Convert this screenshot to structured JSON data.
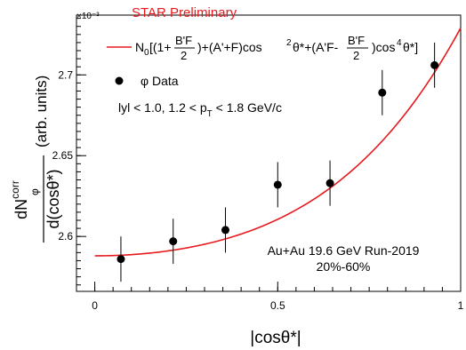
{
  "chart_data": {
    "type": "scatter",
    "preliminary_label": "STAR Preliminary",
    "exponent_label": "×10⁻³",
    "xlabel": "|cosθ*|",
    "ylabel": {
      "units": "(arb. units)",
      "numerator": "dN",
      "numerator_sup": "corr",
      "numerator_sub": "φ",
      "denominator": "d(cosθ*)"
    },
    "xlim": [
      -0.05,
      1.0
    ],
    "ylim": [
      2.566,
      2.737
    ],
    "x_ticks": [
      0,
      0.5,
      1
    ],
    "x_tick_labels": [
      "0",
      "0.5",
      "1"
    ],
    "y_ticks": [
      2.6,
      2.65,
      2.7
    ],
    "y_tick_labels": [
      "2.6",
      "2.65",
      "2.7"
    ],
    "colors": {
      "data": "#000000",
      "fit": "#e8191e",
      "label": "#e8191e"
    },
    "series": [
      {
        "name": "φ Data",
        "marker": "filled-circle",
        "x": [
          0.0714,
          0.2143,
          0.3571,
          0.5,
          0.6429,
          0.7857,
          0.9286
        ],
        "y": [
          2.586,
          2.597,
          2.604,
          2.632,
          2.633,
          2.689,
          2.706
        ],
        "yerr": [
          0.014,
          0.014,
          0.014,
          0.014,
          0.014,
          0.014,
          0.014
        ]
      },
      {
        "name": "fit",
        "type": "line",
        "function": "c0 + c2*x^2 + c4*x^4",
        "coefficients": {
          "c0": 2.588,
          "c2": 0.0735,
          "c4": 0.0675
        }
      }
    ],
    "legend": {
      "placement": "top-left",
      "fit_formula": {
        "n0": "N",
        "n0_sub": "0",
        "open": "[(1+",
        "frac1_num": "B'F",
        "frac1_den": "2",
        "mid1": ")+(A'+F)cos",
        "sup1": "2",
        "mid2": "θ*+(A'F-",
        "frac2_num": "B'F",
        "frac2_den": "2",
        "mid3": ")cos",
        "sup2": "4",
        "close": "θ*]"
      },
      "data_label": "φ Data",
      "cut_text": {
        "pre": "lyl < 1.0, 1.2 < p",
        "sub": "T",
        "post": " < 1.8 GeV/c"
      }
    },
    "annotations": {
      "collision": "Au+Au 19.6 GeV Run-2019",
      "centrality": "20%-60%"
    },
    "grid": false
  }
}
